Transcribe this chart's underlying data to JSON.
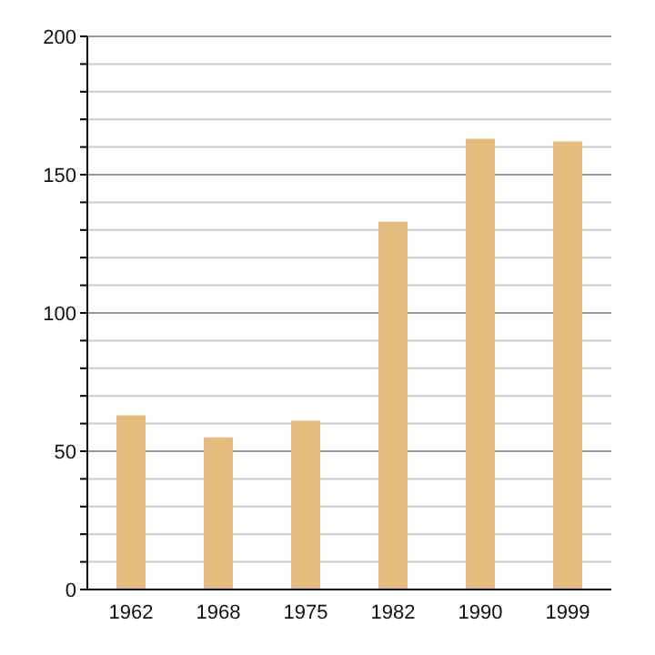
{
  "chart_data": {
    "type": "bar",
    "categories": [
      "1962",
      "1968",
      "1975",
      "1982",
      "1990",
      "1999"
    ],
    "values": [
      63,
      55,
      61,
      133,
      163,
      162
    ],
    "color": "#e6bb7e",
    "ylim": [
      0,
      200
    ],
    "yticks": [
      0,
      {
        "value": 10,
        "label": null
      },
      {
        "value": 20,
        "label": null
      },
      {
        "value": 30,
        "label": null
      },
      {
        "value": 40,
        "label": null
      },
      50,
      {
        "value": 60,
        "label": null
      },
      {
        "value": 70,
        "label": null
      },
      {
        "value": 80,
        "label": null
      },
      {
        "value": 90,
        "label": null
      },
      100,
      {
        "value": 110,
        "label": null
      },
      {
        "value": 120,
        "label": null
      },
      {
        "value": 130,
        "label": null
      },
      {
        "value": 140,
        "label": null
      },
      150,
      {
        "value": 160,
        "label": null
      },
      {
        "value": 170,
        "label": null
      },
      {
        "value": 180,
        "label": null
      },
      {
        "value": 190,
        "label": null
      },
      200
    ],
    "grid": true
  }
}
